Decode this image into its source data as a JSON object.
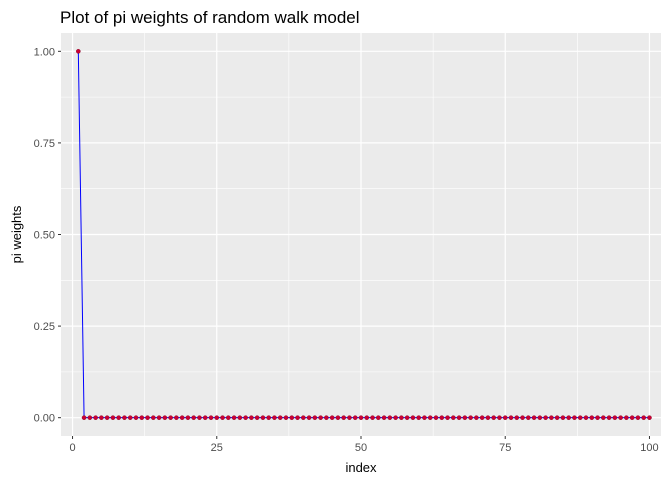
{
  "chart_data": {
    "type": "line",
    "title": "Plot of pi weights of random walk model",
    "xlabel": "index",
    "ylabel": "pi weights",
    "xlim": [
      -2,
      102
    ],
    "ylim": [
      -0.05,
      1.05
    ],
    "x_ticks": [
      0,
      25,
      50,
      75,
      100
    ],
    "y_ticks": [
      0.0,
      0.25,
      0.5,
      0.75,
      1.0
    ],
    "x_tick_labels": [
      "0",
      "25",
      "50",
      "75",
      "100"
    ],
    "y_tick_labels": [
      "0.00",
      "0.25",
      "0.50",
      "0.75",
      "1.00"
    ],
    "grid": true,
    "series": [
      {
        "x_start": 1,
        "x_end": 100,
        "values": [
          1,
          0,
          0,
          0,
          0,
          0,
          0,
          0,
          0,
          0,
          0,
          0,
          0,
          0,
          0,
          0,
          0,
          0,
          0,
          0,
          0,
          0,
          0,
          0,
          0,
          0,
          0,
          0,
          0,
          0,
          0,
          0,
          0,
          0,
          0,
          0,
          0,
          0,
          0,
          0,
          0,
          0,
          0,
          0,
          0,
          0,
          0,
          0,
          0,
          0,
          0,
          0,
          0,
          0,
          0,
          0,
          0,
          0,
          0,
          0,
          0,
          0,
          0,
          0,
          0,
          0,
          0,
          0,
          0,
          0,
          0,
          0,
          0,
          0,
          0,
          0,
          0,
          0,
          0,
          0,
          0,
          0,
          0,
          0,
          0,
          0,
          0,
          0,
          0,
          0,
          0,
          0,
          0,
          0,
          0,
          0,
          0,
          0,
          0,
          0
        ],
        "line_color": "#0000ff",
        "point_color": "#cc0033"
      }
    ]
  },
  "colors": {
    "panel_background": "#ebebeb",
    "grid": "#ffffff",
    "tick_mark": "#333333"
  }
}
